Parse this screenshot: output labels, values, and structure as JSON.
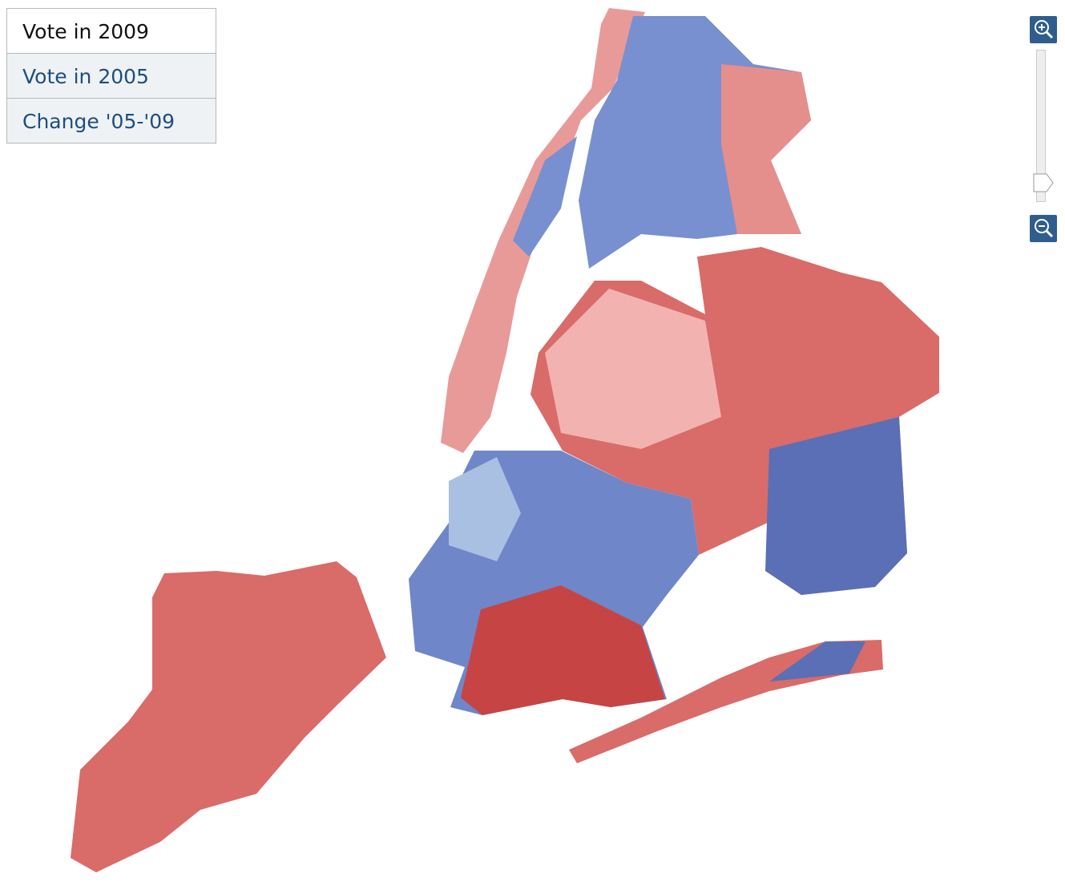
{
  "tabs": [
    "Vote in 2009",
    "Vote in 2005",
    "Change '05-'09"
  ]
}
